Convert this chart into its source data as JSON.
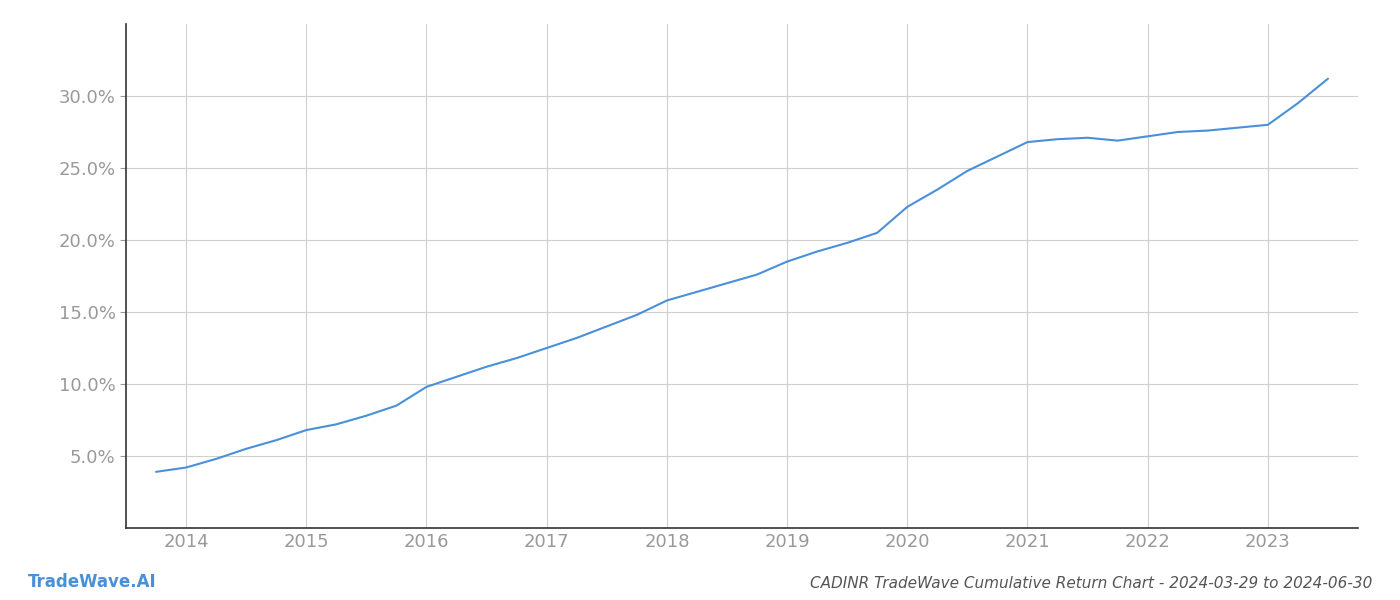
{
  "title": "CADINR TradeWave Cumulative Return Chart - 2024-03-29 to 2024-06-30",
  "watermark": "TradeWave.AI",
  "line_color": "#4a90d9",
  "background_color": "#ffffff",
  "grid_color": "#d0d0d0",
  "x_years": [
    2014,
    2015,
    2016,
    2017,
    2018,
    2019,
    2020,
    2021,
    2022,
    2023
  ],
  "x_data": [
    2013.75,
    2014.0,
    2014.25,
    2014.5,
    2014.75,
    2015.0,
    2015.25,
    2015.5,
    2015.75,
    2016.0,
    2016.25,
    2016.5,
    2016.75,
    2017.0,
    2017.25,
    2017.5,
    2017.75,
    2018.0,
    2018.25,
    2018.5,
    2018.75,
    2019.0,
    2019.25,
    2019.5,
    2019.75,
    2020.0,
    2020.25,
    2020.5,
    2020.75,
    2021.0,
    2021.25,
    2021.5,
    2021.75,
    2022.0,
    2022.25,
    2022.5,
    2022.75,
    2023.0,
    2023.25,
    2023.5
  ],
  "y_data": [
    3.9,
    4.2,
    4.8,
    5.5,
    6.1,
    6.8,
    7.2,
    7.8,
    8.5,
    9.8,
    10.5,
    11.2,
    11.8,
    12.5,
    13.2,
    14.0,
    14.8,
    15.8,
    16.4,
    17.0,
    17.6,
    18.5,
    19.2,
    19.8,
    20.5,
    22.3,
    23.5,
    24.8,
    25.8,
    26.8,
    27.0,
    27.1,
    26.9,
    27.2,
    27.5,
    27.6,
    27.8,
    28.0,
    29.5,
    31.2
  ],
  "ylim": [
    0,
    35
  ],
  "xlim": [
    2013.5,
    2023.75
  ],
  "yticks": [
    5.0,
    10.0,
    15.0,
    20.0,
    25.0,
    30.0
  ],
  "ytick_labels": [
    "5.0%",
    "10.0%",
    "15.0%",
    "20.0%",
    "25.0%",
    "30.0%"
  ],
  "line_width": 1.5,
  "title_fontsize": 11,
  "tick_fontsize": 13,
  "watermark_fontsize": 12,
  "axis_color": "#333333",
  "tick_color": "#999999",
  "title_color": "#555555"
}
